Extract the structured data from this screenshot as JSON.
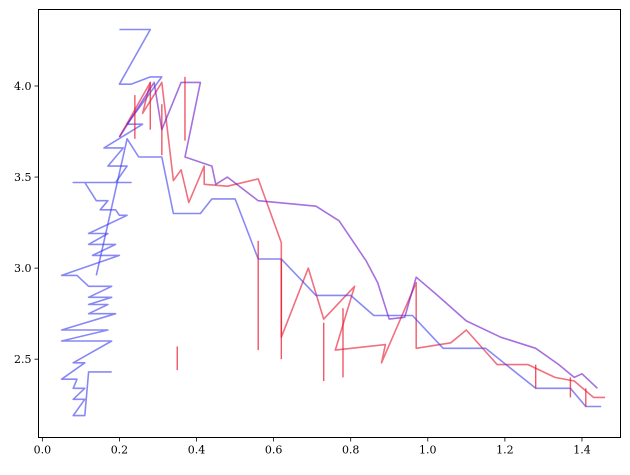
{
  "chart_data": {
    "type": "line",
    "title": "",
    "xlabel": "",
    "ylabel": "",
    "xlim": [
      -0.01,
      1.5
    ],
    "ylim": [
      2.07,
      4.42
    ],
    "xticks": [
      {
        "value": 0.0,
        "label": "0.0"
      },
      {
        "value": 0.2,
        "label": "0.2"
      },
      {
        "value": 0.4,
        "label": "0.4"
      },
      {
        "value": 0.6,
        "label": "0.6"
      },
      {
        "value": 0.8,
        "label": "0.8"
      },
      {
        "value": 1.0,
        "label": "1.0"
      },
      {
        "value": 1.2,
        "label": "1.2"
      },
      {
        "value": 1.4,
        "label": "1.4"
      }
    ],
    "yticks": [
      {
        "value": 2.5,
        "label": "2.5"
      },
      {
        "value": 3.0,
        "label": "3.0"
      },
      {
        "value": 3.5,
        "label": "3.5"
      },
      {
        "value": 4.0,
        "label": "4.0"
      }
    ],
    "grid": false,
    "legend": "none",
    "colors": {
      "blue": "#3a3af0",
      "red": "#e8102a",
      "purple": "#6a10c8",
      "axes": "#000000"
    },
    "series": [
      {
        "color": "blue",
        "points": [
          [
            0.2,
            4.31
          ],
          [
            0.28,
            4.31
          ],
          [
            0.2,
            4.01
          ],
          [
            0.23,
            4.01
          ],
          [
            0.28,
            4.05
          ],
          [
            0.31,
            4.05
          ],
          [
            0.22,
            3.79
          ],
          [
            0.26,
            3.79
          ],
          [
            0.16,
            3.66
          ],
          [
            0.21,
            3.66
          ],
          [
            0.17,
            3.56
          ],
          [
            0.22,
            3.56
          ],
          [
            0.19,
            3.47
          ],
          [
            0.23,
            3.47
          ],
          [
            0.08,
            3.47
          ],
          [
            0.11,
            3.47
          ],
          [
            0.14,
            3.37
          ],
          [
            0.17,
            3.37
          ],
          [
            0.15,
            3.32
          ],
          [
            0.19,
            3.32
          ],
          [
            0.2,
            3.29
          ],
          [
            0.22,
            3.29
          ],
          [
            0.12,
            3.19
          ],
          [
            0.17,
            3.19
          ],
          [
            0.12,
            3.13
          ],
          [
            0.19,
            3.13
          ],
          [
            0.13,
            3.07
          ],
          [
            0.2,
            3.07
          ],
          [
            0.05,
            2.96
          ],
          [
            0.09,
            2.96
          ],
          [
            0.12,
            2.9
          ],
          [
            0.18,
            2.9
          ],
          [
            0.12,
            2.84
          ],
          [
            0.18,
            2.84
          ],
          [
            0.12,
            2.8
          ],
          [
            0.17,
            2.8
          ],
          [
            0.12,
            2.75
          ],
          [
            0.19,
            2.75
          ],
          [
            0.05,
            2.66
          ],
          [
            0.1,
            2.66
          ],
          [
            0.12,
            2.66
          ],
          [
            0.17,
            2.66
          ],
          [
            0.05,
            2.6
          ],
          [
            0.08,
            2.6
          ],
          [
            0.12,
            2.6
          ],
          [
            0.18,
            2.6
          ],
          [
            0.08,
            2.48
          ],
          [
            0.11,
            2.48
          ],
          [
            0.05,
            2.39
          ],
          [
            0.09,
            2.39
          ],
          [
            0.08,
            2.34
          ],
          [
            0.11,
            2.34
          ],
          [
            0.08,
            2.28
          ],
          [
            0.11,
            2.28
          ],
          [
            0.08,
            2.19
          ],
          [
            0.11,
            2.19
          ],
          [
            0.12,
            2.43
          ],
          [
            0.18,
            2.43
          ]
        ]
      },
      {
        "color": "red",
        "points": [
          [
            0.2,
            3.72
          ],
          [
            0.28,
            4.02
          ],
          [
            0.26,
            3.85
          ],
          [
            0.31,
            4.02
          ],
          [
            0.34,
            3.48
          ],
          [
            0.36,
            3.54
          ],
          [
            0.38,
            3.36
          ],
          [
            0.42,
            3.56
          ],
          [
            0.42,
            3.46
          ],
          [
            0.48,
            3.45
          ],
          [
            0.56,
            3.49
          ],
          [
            0.62,
            3.14
          ],
          [
            0.62,
            2.62
          ],
          [
            0.69,
            3.0
          ],
          [
            0.73,
            2.72
          ],
          [
            0.81,
            2.9
          ],
          [
            0.76,
            2.55
          ],
          [
            0.89,
            2.58
          ],
          [
            0.88,
            2.48
          ],
          [
            0.97,
            2.92
          ],
          [
            0.97,
            2.56
          ],
          [
            1.06,
            2.59
          ],
          [
            1.1,
            2.66
          ],
          [
            1.18,
            2.47
          ],
          [
            1.26,
            2.47
          ],
          [
            1.33,
            2.4
          ],
          [
            1.38,
            2.38
          ],
          [
            1.43,
            2.29
          ],
          [
            1.46,
            2.29
          ]
        ]
      },
      {
        "color": "purple",
        "points": [
          [
            0.2,
            3.72
          ],
          [
            0.29,
            4.02
          ],
          [
            0.31,
            3.76
          ],
          [
            0.36,
            4.02
          ],
          [
            0.41,
            4.02
          ],
          [
            0.37,
            3.61
          ],
          [
            0.44,
            3.56
          ],
          [
            0.45,
            3.46
          ],
          [
            0.48,
            3.5
          ],
          [
            0.56,
            3.37
          ],
          [
            0.71,
            3.34
          ],
          [
            0.77,
            3.26
          ],
          [
            0.84,
            3.04
          ],
          [
            0.87,
            2.92
          ],
          [
            0.9,
            2.72
          ],
          [
            0.94,
            2.73
          ],
          [
            0.97,
            2.95
          ],
          [
            1.02,
            2.86
          ],
          [
            1.1,
            2.71
          ],
          [
            1.19,
            2.62
          ],
          [
            1.28,
            2.56
          ],
          [
            1.34,
            2.47
          ],
          [
            1.38,
            2.4
          ],
          [
            1.4,
            2.42
          ],
          [
            1.44,
            2.34
          ]
        ]
      },
      {
        "color": "blue",
        "points": [
          [
            0.14,
            2.96
          ],
          [
            0.22,
            3.71
          ],
          [
            0.25,
            3.61
          ],
          [
            0.31,
            3.61
          ],
          [
            0.34,
            3.3
          ],
          [
            0.41,
            3.3
          ],
          [
            0.44,
            3.38
          ],
          [
            0.5,
            3.38
          ],
          [
            0.56,
            3.05
          ],
          [
            0.62,
            3.05
          ],
          [
            0.71,
            2.85
          ],
          [
            0.8,
            2.85
          ],
          [
            0.86,
            2.74
          ],
          [
            0.96,
            2.74
          ],
          [
            1.04,
            2.56
          ],
          [
            1.15,
            2.56
          ],
          [
            1.28,
            2.34
          ],
          [
            1.37,
            2.34
          ],
          [
            1.41,
            2.24
          ],
          [
            1.45,
            2.24
          ]
        ]
      }
    ],
    "vertical_marks": [
      [
        0.24,
        3.71,
        3.95
      ],
      [
        0.28,
        3.76,
        4.02
      ],
      [
        0.31,
        3.62,
        3.9
      ],
      [
        0.37,
        3.7,
        4.05
      ],
      [
        0.56,
        2.55,
        3.15
      ],
      [
        0.62,
        2.5,
        3.05
      ],
      [
        0.73,
        2.38,
        2.7
      ],
      [
        0.78,
        2.4,
        2.78
      ],
      [
        0.35,
        2.44,
        2.57
      ],
      [
        1.28,
        2.34,
        2.47
      ],
      [
        1.37,
        2.29,
        2.4
      ],
      [
        1.41,
        2.24,
        2.34
      ]
    ]
  }
}
